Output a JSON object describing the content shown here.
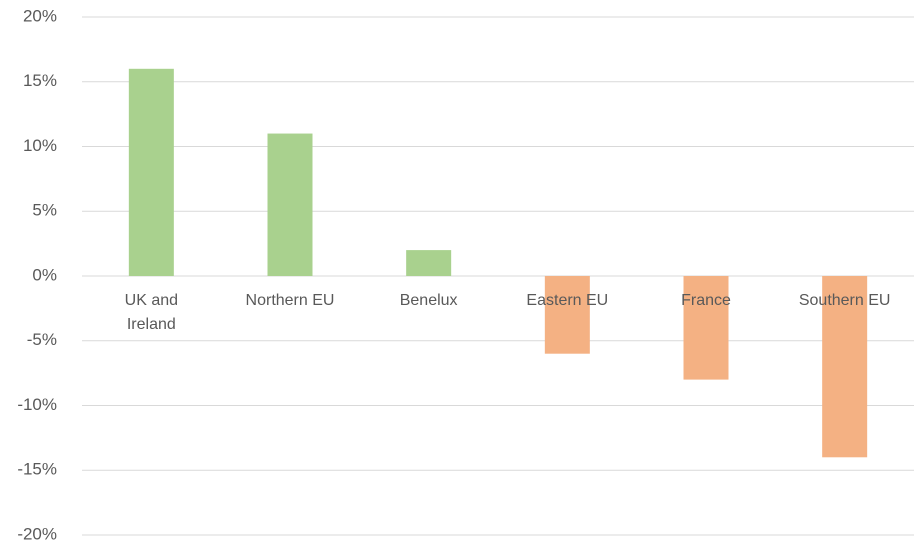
{
  "chart_data": {
    "type": "bar",
    "categories": [
      "UK and Ireland",
      "Northern EU",
      "Benelux",
      "Eastern EU",
      "France",
      "Southern EU"
    ],
    "values": [
      16,
      11,
      2,
      -6,
      -8,
      -14
    ],
    "colors": [
      "#a9d18e",
      "#a9d18e",
      "#a9d18e",
      "#f4b183",
      "#f4b183",
      "#f4b183"
    ],
    "ylim": [
      -20,
      20
    ],
    "yticks": [
      {
        "value": -20,
        "label": "-20%"
      },
      {
        "value": -15,
        "label": "-15%"
      },
      {
        "value": -10,
        "label": "-10%"
      },
      {
        "value": -5,
        "label": "-5%"
      },
      {
        "value": 0,
        "label": "0%"
      },
      {
        "value": 5,
        "label": "5%"
      },
      {
        "value": 10,
        "label": "10%"
      },
      {
        "value": 15,
        "label": "15%"
      },
      {
        "value": 20,
        "label": "20%"
      }
    ],
    "grid": true
  }
}
